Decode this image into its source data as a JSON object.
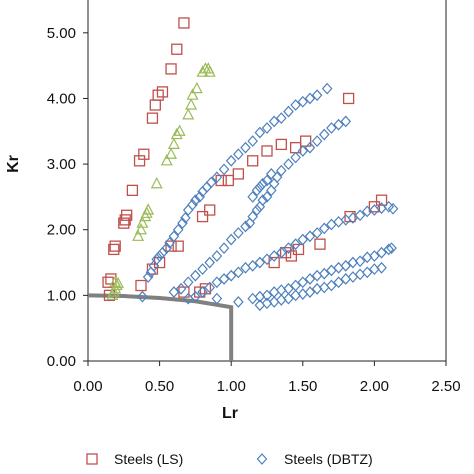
{
  "chart_data": {
    "type": "scatter",
    "title": "",
    "xlabel": "Lr",
    "ylabel": "Kr",
    "xlim": [
      0,
      2.5
    ],
    "ylim": [
      0,
      5.5
    ],
    "x_ticks": [
      "0.00",
      "0.50",
      "1.00",
      "1.50",
      "2.00",
      "2.50"
    ],
    "y_ticks": [
      "0.00",
      "1.00",
      "2.00",
      "3.00",
      "4.00",
      "5.00"
    ],
    "grid": false,
    "legend_position": "bottom",
    "assessment_line": {
      "color": "#808080",
      "points": [
        [
          0.0,
          1.0
        ],
        [
          0.25,
          0.99
        ],
        [
          0.5,
          0.96
        ],
        [
          0.75,
          0.91
        ],
        [
          1.0,
          0.82
        ],
        [
          1.0,
          0.0
        ]
      ]
    },
    "series": [
      {
        "name": "Steels (LS)",
        "marker": "square",
        "color": "#C0504D",
        "points": [
          [
            0.15,
            1.0
          ],
          [
            0.14,
            1.2
          ],
          [
            0.16,
            1.25
          ],
          [
            0.18,
            1.7
          ],
          [
            0.19,
            1.75
          ],
          [
            0.25,
            2.1
          ],
          [
            0.26,
            2.15
          ],
          [
            0.27,
            2.22
          ],
          [
            0.31,
            2.6
          ],
          [
            0.36,
            3.05
          ],
          [
            0.39,
            3.15
          ],
          [
            0.45,
            3.7
          ],
          [
            0.47,
            3.9
          ],
          [
            0.49,
            4.05
          ],
          [
            0.52,
            4.1
          ],
          [
            0.58,
            4.45
          ],
          [
            0.62,
            4.75
          ],
          [
            0.67,
            5.15
          ],
          [
            0.37,
            1.15
          ],
          [
            0.45,
            1.4
          ],
          [
            0.5,
            1.5
          ],
          [
            0.58,
            1.75
          ],
          [
            0.63,
            1.75
          ],
          [
            0.67,
            1.05
          ],
          [
            0.78,
            1.05
          ],
          [
            0.82,
            1.1
          ],
          [
            0.8,
            2.2
          ],
          [
            0.85,
            2.3
          ],
          [
            0.93,
            2.75
          ],
          [
            0.98,
            2.75
          ],
          [
            1.05,
            2.85
          ],
          [
            1.15,
            3.05
          ],
          [
            1.25,
            3.2
          ],
          [
            1.35,
            3.3
          ],
          [
            1.45,
            3.25
          ],
          [
            1.52,
            3.35
          ],
          [
            1.82,
            4.0
          ],
          [
            1.3,
            1.5
          ],
          [
            1.38,
            1.65
          ],
          [
            1.42,
            1.6
          ],
          [
            1.47,
            1.7
          ],
          [
            1.62,
            1.78
          ],
          [
            1.83,
            2.2
          ],
          [
            2.0,
            2.35
          ],
          [
            2.05,
            2.45
          ]
        ]
      },
      {
        "name": "Steels (DBTZ)",
        "marker": "diamond",
        "color": "#4F81BD",
        "points": [
          [
            0.38,
            0.98
          ],
          [
            0.42,
            1.28
          ],
          [
            0.44,
            1.35
          ],
          [
            0.46,
            1.45
          ],
          [
            0.48,
            1.55
          ],
          [
            0.5,
            1.6
          ],
          [
            0.52,
            1.65
          ],
          [
            0.55,
            1.72
          ],
          [
            0.57,
            1.8
          ],
          [
            0.6,
            1.9
          ],
          [
            0.63,
            2.0
          ],
          [
            0.66,
            2.1
          ],
          [
            0.68,
            2.18
          ],
          [
            0.7,
            2.3
          ],
          [
            0.73,
            2.38
          ],
          [
            0.75,
            2.45
          ],
          [
            0.78,
            2.5
          ],
          [
            0.8,
            2.58
          ],
          [
            0.83,
            2.65
          ],
          [
            0.86,
            2.72
          ],
          [
            0.9,
            2.8
          ],
          [
            0.95,
            2.92
          ],
          [
            1.0,
            3.05
          ],
          [
            1.05,
            3.15
          ],
          [
            1.1,
            3.25
          ],
          [
            1.15,
            3.35
          ],
          [
            1.2,
            3.48
          ],
          [
            1.25,
            3.55
          ],
          [
            1.3,
            3.65
          ],
          [
            1.35,
            3.7
          ],
          [
            1.4,
            3.8
          ],
          [
            1.45,
            3.9
          ],
          [
            1.5,
            3.95
          ],
          [
            1.55,
            4.0
          ],
          [
            1.6,
            4.05
          ],
          [
            1.67,
            4.15
          ],
          [
            0.6,
            1.05
          ],
          [
            0.65,
            1.1
          ],
          [
            0.7,
            1.2
          ],
          [
            0.75,
            1.3
          ],
          [
            0.8,
            1.4
          ],
          [
            0.85,
            1.5
          ],
          [
            0.9,
            1.6
          ],
          [
            0.95,
            1.72
          ],
          [
            1.0,
            1.85
          ],
          [
            1.05,
            1.95
          ],
          [
            1.1,
            2.05
          ],
          [
            1.13,
            2.1
          ],
          [
            1.15,
            2.2
          ],
          [
            1.18,
            2.3
          ],
          [
            1.2,
            2.35
          ],
          [
            1.22,
            2.45
          ],
          [
            1.25,
            2.5
          ],
          [
            1.28,
            2.6
          ],
          [
            1.3,
            2.7
          ],
          [
            1.32,
            2.8
          ],
          [
            1.35,
            2.9
          ],
          [
            1.4,
            3.0
          ],
          [
            1.45,
            3.1
          ],
          [
            1.5,
            3.2
          ],
          [
            1.55,
            3.25
          ],
          [
            1.6,
            3.35
          ],
          [
            1.65,
            3.45
          ],
          [
            1.7,
            3.55
          ],
          [
            1.75,
            3.6
          ],
          [
            1.8,
            3.65
          ],
          [
            1.15,
            2.5
          ],
          [
            1.18,
            2.6
          ],
          [
            1.2,
            2.65
          ],
          [
            1.22,
            2.7
          ],
          [
            1.25,
            2.75
          ],
          [
            1.28,
            2.85
          ],
          [
            0.7,
            0.95
          ],
          [
            0.75,
            0.98
          ],
          [
            0.8,
            1.05
          ],
          [
            0.85,
            1.12
          ],
          [
            0.9,
            1.2
          ],
          [
            0.95,
            1.25
          ],
          [
            1.0,
            1.3
          ],
          [
            1.05,
            1.35
          ],
          [
            1.1,
            1.42
          ],
          [
            1.15,
            1.45
          ],
          [
            1.2,
            1.5
          ],
          [
            1.25,
            1.55
          ],
          [
            1.3,
            1.6
          ],
          [
            1.35,
            1.65
          ],
          [
            1.4,
            1.72
          ],
          [
            1.45,
            1.78
          ],
          [
            1.5,
            1.85
          ],
          [
            1.55,
            1.9
          ],
          [
            1.6,
            1.95
          ],
          [
            1.65,
            2.02
          ],
          [
            1.7,
            2.08
          ],
          [
            1.75,
            2.12
          ],
          [
            1.8,
            2.15
          ],
          [
            1.85,
            2.18
          ],
          [
            1.9,
            2.22
          ],
          [
            1.95,
            2.28
          ],
          [
            2.0,
            2.3
          ],
          [
            2.05,
            2.33
          ],
          [
            2.1,
            2.35
          ],
          [
            2.13,
            2.32
          ],
          [
            1.15,
            0.95
          ],
          [
            1.2,
            0.98
          ],
          [
            1.25,
            1.0
          ],
          [
            1.3,
            1.05
          ],
          [
            1.35,
            1.08
          ],
          [
            1.4,
            1.1
          ],
          [
            1.45,
            1.15
          ],
          [
            1.5,
            1.2
          ],
          [
            1.55,
            1.25
          ],
          [
            1.6,
            1.3
          ],
          [
            1.65,
            1.33
          ],
          [
            1.7,
            1.38
          ],
          [
            1.75,
            1.42
          ],
          [
            1.8,
            1.45
          ],
          [
            1.85,
            1.5
          ],
          [
            1.9,
            1.52
          ],
          [
            1.95,
            1.58
          ],
          [
            2.0,
            1.6
          ],
          [
            2.05,
            1.65
          ],
          [
            2.1,
            1.7
          ],
          [
            2.12,
            1.72
          ],
          [
            1.2,
            0.85
          ],
          [
            1.25,
            0.88
          ],
          [
            1.3,
            0.9
          ],
          [
            1.35,
            0.93
          ],
          [
            1.4,
            0.95
          ],
          [
            1.45,
            1.0
          ],
          [
            1.5,
            1.02
          ],
          [
            1.55,
            1.05
          ],
          [
            1.6,
            1.1
          ],
          [
            1.65,
            1.12
          ],
          [
            1.7,
            1.15
          ],
          [
            1.75,
            1.2
          ],
          [
            1.8,
            1.25
          ],
          [
            1.85,
            1.28
          ],
          [
            1.9,
            1.32
          ],
          [
            1.95,
            1.35
          ],
          [
            2.0,
            1.4
          ],
          [
            2.05,
            1.42
          ],
          [
            1.05,
            0.9
          ],
          [
            0.9,
            0.95
          ]
        ]
      },
      {
        "name": "",
        "marker": "triangle",
        "color": "#9BBB59",
        "points": [
          [
            0.17,
            1.0
          ],
          [
            0.18,
            1.05
          ],
          [
            0.19,
            1.1
          ],
          [
            0.2,
            1.15
          ],
          [
            0.21,
            1.18
          ],
          [
            0.19,
            1.2
          ],
          [
            0.35,
            1.9
          ],
          [
            0.37,
            2.0
          ],
          [
            0.38,
            2.1
          ],
          [
            0.4,
            2.2
          ],
          [
            0.41,
            2.25
          ],
          [
            0.42,
            2.3
          ],
          [
            0.48,
            2.7
          ],
          [
            0.55,
            3.05
          ],
          [
            0.58,
            3.15
          ],
          [
            0.6,
            3.3
          ],
          [
            0.62,
            3.45
          ],
          [
            0.64,
            3.5
          ],
          [
            0.7,
            3.75
          ],
          [
            0.72,
            3.9
          ],
          [
            0.73,
            4.05
          ],
          [
            0.76,
            4.15
          ],
          [
            0.8,
            4.4
          ],
          [
            0.82,
            4.45
          ],
          [
            0.84,
            4.45
          ],
          [
            0.85,
            4.4
          ]
        ]
      }
    ]
  }
}
